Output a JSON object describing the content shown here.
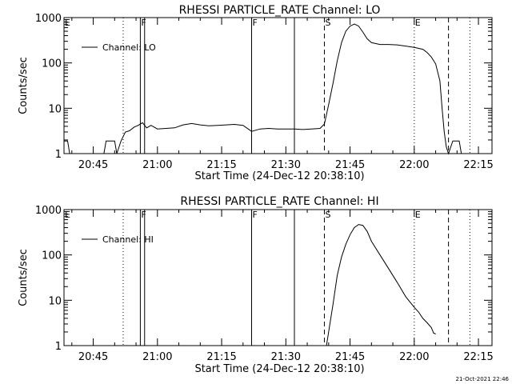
{
  "timestamp": "21-Oct-2021 22:46",
  "chart_data": [
    {
      "type": "line",
      "title": "RHESSI PARTICLE_RATE Channel: LO",
      "xlabel": "Start Time (24-Dec-12 20:38:10)",
      "ylabel": "Counts/sec",
      "yscale": "log",
      "ylim": [
        1,
        1000
      ],
      "xlim_minutes_after_2038": [
        0,
        100
      ],
      "xticks": [
        "20:45",
        "21:00",
        "21:15",
        "21:30",
        "21:45",
        "22:00",
        "22:15"
      ],
      "yticks": [
        "1",
        "10",
        "100",
        "1000"
      ],
      "legend": {
        "location": "top-left",
        "entries": [
          "Channel: LO"
        ]
      },
      "markers": [
        {
          "label": "",
          "x": "20:52",
          "style": "dotted"
        },
        {
          "label": "F",
          "x": "20:56",
          "style": "solid"
        },
        {
          "label": "",
          "x": "20:57",
          "style": "solid"
        },
        {
          "label": "F",
          "x": "21:22",
          "style": "solid"
        },
        {
          "label": "",
          "x": "21:32",
          "style": "solid"
        },
        {
          "label": "S",
          "x": "21:39",
          "style": "dashed"
        },
        {
          "label": "E",
          "x": "22:00",
          "style": "dotted"
        },
        {
          "label": "",
          "x": "22:08",
          "style": "dashed"
        },
        {
          "label": "",
          "x": "22:13",
          "style": "dotted"
        }
      ],
      "series": [
        {
          "name": "Channel: LO",
          "points": [
            [
              "20:38:10",
              1.9
            ],
            [
              "20:39:00",
              1.9
            ],
            [
              "20:39:30",
              1
            ],
            [
              "20:47:30",
              1
            ],
            [
              "20:48:00",
              1.9
            ],
            [
              "20:50:00",
              1.9
            ],
            [
              "20:50:30",
              1
            ],
            [
              "20:51:30",
              1.9
            ],
            [
              "20:52:30",
              3
            ],
            [
              "20:53:30",
              3.2
            ],
            [
              "20:54:30",
              3.8
            ],
            [
              "20:55:30",
              4.2
            ],
            [
              "20:56:30",
              4.8
            ],
            [
              "20:57:30",
              3.7
            ],
            [
              "20:58:30",
              4.2
            ],
            [
              "21:00:00",
              3.5
            ],
            [
              "21:02:00",
              3.6
            ],
            [
              "21:04:00",
              3.7
            ],
            [
              "21:06:00",
              4.3
            ],
            [
              "21:08:00",
              4.6
            ],
            [
              "21:10:00",
              4.3
            ],
            [
              "21:12:00",
              4.1
            ],
            [
              "21:14:00",
              4.2
            ],
            [
              "21:16:00",
              4.3
            ],
            [
              "21:18:00",
              4.4
            ],
            [
              "21:20:00",
              4.2
            ],
            [
              "21:22:00",
              3.1
            ],
            [
              "21:24:00",
              3.5
            ],
            [
              "21:26:00",
              3.6
            ],
            [
              "21:28:00",
              3.5
            ],
            [
              "21:30:00",
              3.5
            ],
            [
              "21:32:00",
              3.5
            ],
            [
              "21:34:00",
              3.4
            ],
            [
              "21:36:00",
              3.5
            ],
            [
              "21:38:00",
              3.6
            ],
            [
              "21:39:00",
              4.5
            ],
            [
              "21:40:00",
              12
            ],
            [
              "21:41:00",
              35
            ],
            [
              "21:42:00",
              110
            ],
            [
              "21:43:00",
              280
            ],
            [
              "21:44:00",
              500
            ],
            [
              "21:45:00",
              650
            ],
            [
              "21:46:00",
              720
            ],
            [
              "21:47:00",
              650
            ],
            [
              "21:48:00",
              480
            ],
            [
              "21:49:00",
              340
            ],
            [
              "21:50:00",
              280
            ],
            [
              "21:52:00",
              255
            ],
            [
              "21:54:00",
              255
            ],
            [
              "21:56:00",
              250
            ],
            [
              "21:58:00",
              235
            ],
            [
              "22:00:00",
              220
            ],
            [
              "22:02:00",
              200
            ],
            [
              "22:03:00",
              170
            ],
            [
              "22:04:00",
              135
            ],
            [
              "22:05:00",
              95
            ],
            [
              "22:06:00",
              40
            ],
            [
              "22:06:30",
              10
            ],
            [
              "22:07:00",
              3
            ],
            [
              "22:07:30",
              1.4
            ],
            [
              "22:08:00",
              1
            ],
            [
              "22:09:00",
              1.9
            ],
            [
              "22:10:30",
              1.9
            ],
            [
              "22:11:00",
              1
            ]
          ]
        }
      ]
    },
    {
      "type": "line",
      "title": "RHESSI PARTICLE_RATE Channel: HI",
      "xlabel": "Start Time (24-Dec-12 20:38:10)",
      "ylabel": "Counts/sec",
      "yscale": "log",
      "ylim": [
        1,
        1000
      ],
      "xticks": [
        "20:45",
        "21:00",
        "21:15",
        "21:30",
        "21:45",
        "22:00",
        "22:15"
      ],
      "yticks": [
        "1",
        "10",
        "100",
        "1000"
      ],
      "legend": {
        "location": "top-left",
        "entries": [
          "Channel: HI"
        ]
      },
      "markers": [
        {
          "label": "",
          "x": "20:52",
          "style": "dotted"
        },
        {
          "label": "F",
          "x": "20:56",
          "style": "solid"
        },
        {
          "label": "",
          "x": "20:57",
          "style": "solid"
        },
        {
          "label": "F",
          "x": "21:22",
          "style": "solid"
        },
        {
          "label": "",
          "x": "21:32",
          "style": "solid"
        },
        {
          "label": "S",
          "x": "21:39",
          "style": "dashed"
        },
        {
          "label": "E",
          "x": "22:00",
          "style": "dotted"
        },
        {
          "label": "",
          "x": "22:08",
          "style": "dashed"
        },
        {
          "label": "",
          "x": "22:13",
          "style": "dotted"
        }
      ],
      "series": [
        {
          "name": "Channel: HI",
          "points": [
            [
              "21:39:30",
              1
            ],
            [
              "21:40:00",
              2
            ],
            [
              "21:41:00",
              8
            ],
            [
              "21:42:00",
              35
            ],
            [
              "21:43:00",
              90
            ],
            [
              "21:44:00",
              170
            ],
            [
              "21:45:00",
              280
            ],
            [
              "21:46:00",
              400
            ],
            [
              "21:47:00",
              470
            ],
            [
              "21:48:00",
              450
            ],
            [
              "21:49:00",
              330
            ],
            [
              "21:50:00",
              200
            ],
            [
              "21:52:00",
              100
            ],
            [
              "21:54:00",
              50
            ],
            [
              "21:56:00",
              25
            ],
            [
              "21:58:00",
              12
            ],
            [
              "22:00:00",
              7
            ],
            [
              "22:01:00",
              5.5
            ],
            [
              "22:02:00",
              4
            ],
            [
              "22:03:00",
              3.2
            ],
            [
              "22:04:00",
              2.5
            ],
            [
              "22:04:30",
              1.9
            ],
            [
              "22:05:00",
              1.8
            ]
          ]
        }
      ]
    }
  ]
}
